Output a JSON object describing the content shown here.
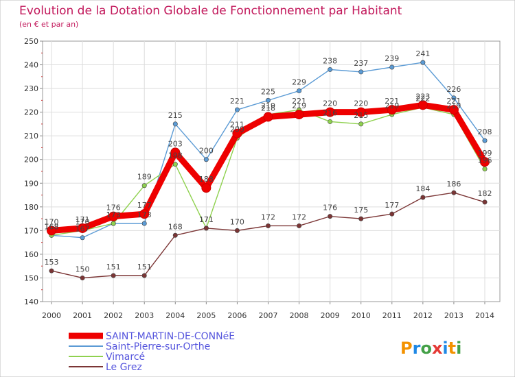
{
  "chart_data": {
    "type": "line",
    "title": "Evolution de la Dotation Globale de Fonctionnement par Habitant",
    "subtitle": "(en € et par an)",
    "xlabel": "",
    "ylabel": "",
    "ylim": [
      140,
      250
    ],
    "yticks": [
      140,
      150,
      160,
      170,
      180,
      190,
      200,
      210,
      220,
      230,
      240,
      250
    ],
    "x": [
      2000,
      2001,
      2002,
      2003,
      2004,
      2005,
      2006,
      2007,
      2008,
      2009,
      2010,
      2011,
      2012,
      2013,
      2014
    ],
    "grid": true,
    "legend_position": "bottom-left",
    "series": [
      {
        "name": "Saint-Pierre-sur-Orthe",
        "color": "#5b9bd5",
        "values": [
          168,
          167,
          173,
          173,
          215,
          200,
          221,
          225,
          229,
          238,
          237,
          239,
          241,
          226,
          208
        ]
      },
      {
        "name": "Vimarcé",
        "color": "#8fd14f",
        "values": [
          168,
          170,
          173,
          189,
          198,
          171,
          209,
          219,
          221,
          216,
          215,
          219,
          222,
          219,
          196
        ]
      },
      {
        "name": "Le Grez",
        "color": "#7b3535",
        "values": [
          153,
          150,
          151,
          151,
          168,
          171,
          170,
          172,
          172,
          176,
          175,
          177,
          184,
          186,
          182
        ]
      },
      {
        "name": "SAINT-MARTIN-DE-CONNéE",
        "color": "#ee0000",
        "values": [
          170,
          171,
          176,
          177,
          203,
          188,
          211,
          218,
          219,
          220,
          220,
          221,
          223,
          221,
          199
        ]
      }
    ]
  },
  "logo": {
    "text": "Proxiti"
  }
}
